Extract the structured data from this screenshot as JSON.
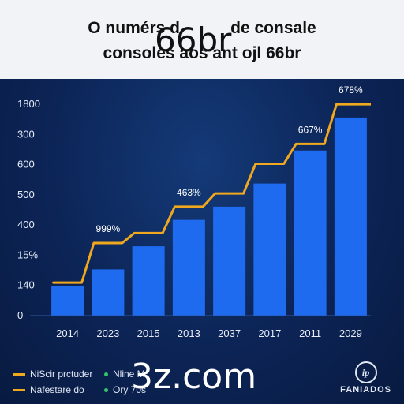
{
  "title_lines": [
    "O numérs d",
    "consoles aos ant ojl 66br"
  ],
  "title_right": "de consale",
  "overlay_text_top": "66br",
  "overlay_text_bottom": "3z.com",
  "chart_data": {
    "type": "bar",
    "categories": [
      "2014",
      "2023",
      "2015",
      "2013",
      "2037",
      "2017",
      "2011",
      "2029"
    ],
    "y_ticks": [
      "0",
      "140",
      "15%",
      "400",
      "500",
      "600",
      "300",
      "1800"
    ],
    "series": [
      {
        "type": "bar",
        "values": [
          0.9,
          1.4,
          2.1,
          2.9,
          3.3,
          4.0,
          5.0,
          6.0
        ],
        "color": "#1e6bf0"
      },
      {
        "type": "line",
        "values": [
          1.0,
          2.2,
          2.5,
          3.3,
          3.7,
          4.6,
          5.2,
          6.4
        ],
        "color": "#f0a91e"
      }
    ],
    "annotations": [
      {
        "category": "2023",
        "text": "999%"
      },
      {
        "category": "2013",
        "text": "463%"
      },
      {
        "category": "2011",
        "text": "667%"
      },
      {
        "category": "2029",
        "text": "678%"
      }
    ],
    "ylim": [
      0,
      6.5
    ],
    "grid": false
  },
  "legend": {
    "line_items": [
      "NiScir prctuder",
      "Nafestare do"
    ],
    "dot_items": [
      "Nline M",
      "Ory 70s"
    ]
  },
  "brand": {
    "logo_text": "ip",
    "name": "FANIADOS"
  },
  "colors": {
    "bar": "#1e6bf0",
    "line": "#f0a91e",
    "background": "#0c2456"
  }
}
